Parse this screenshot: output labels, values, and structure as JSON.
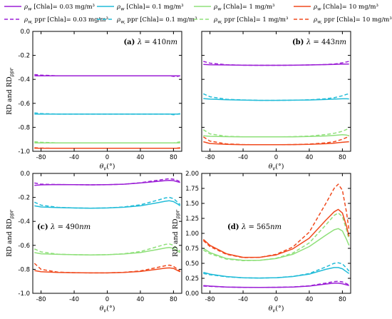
{
  "legend": {
    "entries": [
      {
        "label": "ρ_w [Chla]= 0.03 mg/m³",
        "color": "#9b1fd6",
        "dash": false
      },
      {
        "label": "ρ_w [Chla]= 0.1 mg/m³",
        "color": "#22bcd8",
        "dash": false
      },
      {
        "label": "ρ_w [Chla]= 1 mg/m³",
        "color": "#8fe07a",
        "dash": false
      },
      {
        "label": "ρ_w [Chla]= 10 mg/m³",
        "color": "#f04a1e",
        "dash": false
      },
      {
        "label": "ρ_w, ppr [Chla]= 0.03 mg/m³",
        "color": "#9b1fd6",
        "dash": true
      },
      {
        "label": "ρ_w, ppr [Chla]= 0.1 mg/m³",
        "color": "#22bcd8",
        "dash": true
      },
      {
        "label": "ρ_w, ppr [Chla]= 1 mg/m³",
        "color": "#8fe07a",
        "dash": true
      },
      {
        "label": "ρ_w, ppr [Chla]= 10 mg/m³",
        "color": "#f04a1e",
        "dash": true
      }
    ]
  },
  "chart_data": [
    {
      "type": "line",
      "title": "(a) λ = 410nm",
      "xlabel": "θv(°)",
      "ylabel": "RD and RDppr",
      "xlim": [
        -90,
        90
      ],
      "ylim": [
        -1.0,
        0.0
      ],
      "xticks": [
        -80,
        -40,
        0,
        40,
        80
      ],
      "yticks": [
        0.0,
        -0.2,
        -0.4,
        -0.6,
        -0.8,
        -1.0
      ],
      "ytick_labels": [
        "0.0",
        "-0.2",
        "-0.4",
        "-0.6",
        "-0.8",
        "-1.0"
      ],
      "x": [
        -88,
        -80,
        -60,
        -40,
        -20,
        0,
        20,
        40,
        60,
        70,
        75,
        80,
        85,
        88
      ],
      "series": [
        {
          "color": "#9b1fd6",
          "dash": false,
          "values": [
            -0.37,
            -0.37,
            -0.37,
            -0.37,
            -0.37,
            -0.37,
            -0.37,
            -0.37,
            -0.37,
            -0.37,
            -0.37,
            -0.37,
            -0.37,
            -0.37
          ]
        },
        {
          "color": "#9b1fd6",
          "dash": true,
          "values": [
            -0.36,
            -0.365,
            -0.37,
            -0.37,
            -0.37,
            -0.37,
            -0.37,
            -0.37,
            -0.37,
            -0.37,
            -0.37,
            -0.375,
            -0.375,
            -0.37
          ]
        },
        {
          "color": "#22bcd8",
          "dash": false,
          "values": [
            -0.69,
            -0.69,
            -0.69,
            -0.69,
            -0.69,
            -0.69,
            -0.69,
            -0.69,
            -0.69,
            -0.69,
            -0.69,
            -0.69,
            -0.69,
            -0.69
          ]
        },
        {
          "color": "#22bcd8",
          "dash": true,
          "values": [
            -0.68,
            -0.685,
            -0.69,
            -0.69,
            -0.69,
            -0.69,
            -0.69,
            -0.69,
            -0.69,
            -0.69,
            -0.69,
            -0.695,
            -0.69,
            -0.685
          ]
        },
        {
          "color": "#8fe07a",
          "dash": false,
          "values": [
            -0.93,
            -0.93,
            -0.93,
            -0.93,
            -0.93,
            -0.93,
            -0.93,
            -0.93,
            -0.93,
            -0.93,
            -0.93,
            -0.93,
            -0.93,
            -0.93
          ]
        },
        {
          "color": "#8fe07a",
          "dash": true,
          "values": [
            -0.92,
            -0.925,
            -0.93,
            -0.93,
            -0.93,
            -0.93,
            -0.93,
            -0.93,
            -0.93,
            -0.93,
            -0.93,
            -0.93,
            -0.925,
            -0.92
          ]
        },
        {
          "color": "#f04a1e",
          "dash": false,
          "values": [
            -0.975,
            -0.975,
            -0.975,
            -0.975,
            -0.975,
            -0.975,
            -0.975,
            -0.975,
            -0.975,
            -0.975,
            -0.975,
            -0.975,
            -0.975,
            -0.975
          ]
        },
        {
          "color": "#f04a1e",
          "dash": true,
          "values": [
            -0.97,
            -0.973,
            -0.975,
            -0.975,
            -0.975,
            -0.975,
            -0.975,
            -0.975,
            -0.975,
            -0.975,
            -0.975,
            -0.975,
            -0.973,
            -0.97
          ]
        }
      ]
    },
    {
      "type": "line",
      "title": "(b) λ = 443nm",
      "xlabel": "θv(°)",
      "ylabel": "",
      "xlim": [
        -90,
        90
      ],
      "ylim": [
        -1.0,
        0.0
      ],
      "xticks": [
        -80,
        -40,
        0,
        40,
        80
      ],
      "yticks": [
        0.0,
        -0.2,
        -0.4,
        -0.6,
        -0.8,
        -1.0
      ],
      "ytick_labels": [
        "",
        "",
        "",
        "",
        "",
        ""
      ],
      "x": [
        -88,
        -80,
        -60,
        -40,
        -20,
        0,
        20,
        40,
        60,
        70,
        75,
        80,
        85,
        88
      ],
      "series": [
        {
          "color": "#9b1fd6",
          "dash": false,
          "values": [
            -0.275,
            -0.278,
            -0.28,
            -0.282,
            -0.283,
            -0.283,
            -0.282,
            -0.28,
            -0.277,
            -0.275,
            -0.274,
            -0.273,
            -0.272,
            -0.272
          ]
        },
        {
          "color": "#9b1fd6",
          "dash": true,
          "values": [
            -0.25,
            -0.265,
            -0.278,
            -0.282,
            -0.283,
            -0.283,
            -0.282,
            -0.28,
            -0.276,
            -0.272,
            -0.268,
            -0.262,
            -0.255,
            -0.25
          ]
        },
        {
          "color": "#22bcd8",
          "dash": false,
          "values": [
            -0.56,
            -0.565,
            -0.57,
            -0.573,
            -0.575,
            -0.575,
            -0.574,
            -0.572,
            -0.568,
            -0.565,
            -0.563,
            -0.562,
            -0.562,
            -0.563
          ]
        },
        {
          "color": "#22bcd8",
          "dash": true,
          "values": [
            -0.52,
            -0.545,
            -0.566,
            -0.572,
            -0.575,
            -0.575,
            -0.574,
            -0.571,
            -0.562,
            -0.553,
            -0.545,
            -0.537,
            -0.525,
            -0.52
          ]
        },
        {
          "color": "#8fe07a",
          "dash": false,
          "values": [
            -0.87,
            -0.875,
            -0.878,
            -0.88,
            -0.88,
            -0.88,
            -0.879,
            -0.877,
            -0.872,
            -0.867,
            -0.864,
            -0.862,
            -0.865,
            -0.87
          ]
        },
        {
          "color": "#8fe07a",
          "dash": true,
          "values": [
            -0.82,
            -0.855,
            -0.875,
            -0.879,
            -0.88,
            -0.88,
            -0.878,
            -0.873,
            -0.86,
            -0.85,
            -0.842,
            -0.833,
            -0.818,
            -0.81
          ]
        },
        {
          "color": "#f04a1e",
          "dash": false,
          "values": [
            -0.92,
            -0.935,
            -0.942,
            -0.945,
            -0.945,
            -0.945,
            -0.944,
            -0.942,
            -0.937,
            -0.932,
            -0.928,
            -0.925,
            -0.922,
            -0.92
          ]
        },
        {
          "color": "#f04a1e",
          "dash": true,
          "values": [
            -0.88,
            -0.915,
            -0.938,
            -0.944,
            -0.945,
            -0.945,
            -0.944,
            -0.94,
            -0.93,
            -0.92,
            -0.91,
            -0.9,
            -0.885,
            -0.87
          ]
        }
      ]
    },
    {
      "type": "line",
      "title": "(c) λ = 490nm",
      "xlabel": "θv(°)",
      "ylabel": "RD and RDppr",
      "xlim": [
        -90,
        90
      ],
      "ylim": [
        -1.0,
        0.0
      ],
      "xticks": [
        -80,
        -40,
        0,
        40,
        80
      ],
      "yticks": [
        0.0,
        -0.2,
        -0.4,
        -0.6,
        -0.8,
        -1.0
      ],
      "ytick_labels": [
        "0.0",
        "-0.2",
        "-0.4",
        "-0.6",
        "-0.8",
        "-1.0"
      ],
      "x": [
        -88,
        -80,
        -60,
        -40,
        -20,
        0,
        20,
        40,
        60,
        70,
        75,
        80,
        85,
        88
      ],
      "series": [
        {
          "color": "#9b1fd6",
          "dash": false,
          "values": [
            -0.1,
            -0.095,
            -0.093,
            -0.094,
            -0.095,
            -0.094,
            -0.09,
            -0.08,
            -0.067,
            -0.06,
            -0.058,
            -0.06,
            -0.07,
            -0.075
          ]
        },
        {
          "color": "#9b1fd6",
          "dash": true,
          "values": [
            -0.08,
            -0.09,
            -0.093,
            -0.094,
            -0.095,
            -0.094,
            -0.09,
            -0.078,
            -0.058,
            -0.048,
            -0.044,
            -0.048,
            -0.06,
            -0.07
          ]
        },
        {
          "color": "#22bcd8",
          "dash": false,
          "values": [
            -0.27,
            -0.28,
            -0.285,
            -0.288,
            -0.29,
            -0.288,
            -0.282,
            -0.27,
            -0.245,
            -0.232,
            -0.228,
            -0.235,
            -0.255,
            -0.27
          ]
        },
        {
          "color": "#22bcd8",
          "dash": true,
          "values": [
            -0.24,
            -0.265,
            -0.283,
            -0.288,
            -0.29,
            -0.288,
            -0.28,
            -0.262,
            -0.225,
            -0.205,
            -0.2,
            -0.21,
            -0.24,
            -0.26
          ]
        },
        {
          "color": "#8fe07a",
          "dash": false,
          "values": [
            -0.66,
            -0.67,
            -0.675,
            -0.678,
            -0.68,
            -0.678,
            -0.672,
            -0.66,
            -0.635,
            -0.622,
            -0.618,
            -0.625,
            -0.648,
            -0.66
          ]
        },
        {
          "color": "#8fe07a",
          "dash": true,
          "values": [
            -0.63,
            -0.655,
            -0.673,
            -0.678,
            -0.68,
            -0.678,
            -0.67,
            -0.652,
            -0.612,
            -0.592,
            -0.588,
            -0.6,
            -0.63,
            -0.65
          ]
        },
        {
          "color": "#f04a1e",
          "dash": false,
          "values": [
            -0.81,
            -0.82,
            -0.826,
            -0.828,
            -0.83,
            -0.83,
            -0.826,
            -0.818,
            -0.8,
            -0.79,
            -0.788,
            -0.792,
            -0.81,
            -0.82
          ]
        },
        {
          "color": "#f04a1e",
          "dash": true,
          "values": [
            -0.75,
            -0.8,
            -0.823,
            -0.828,
            -0.83,
            -0.83,
            -0.825,
            -0.813,
            -0.785,
            -0.77,
            -0.765,
            -0.775,
            -0.8,
            -0.815
          ]
        }
      ]
    },
    {
      "type": "line",
      "title": "(d) λ = 565nm",
      "xlabel": "θv(°)",
      "ylabel": "RD and RDppr",
      "xlim": [
        -90,
        90
      ],
      "ylim": [
        0.0,
        2.0
      ],
      "xticks": [
        -80,
        -40,
        0,
        40,
        80
      ],
      "yticks": [
        0.0,
        0.25,
        0.5,
        0.75,
        1.0,
        1.25,
        1.5,
        1.75,
        2.0
      ],
      "ytick_labels": [
        "0.00",
        "0.25",
        "0.50",
        "0.75",
        "1.00",
        "1.25",
        "1.50",
        "1.75",
        "2.00"
      ],
      "x": [
        -88,
        -80,
        -60,
        -40,
        -20,
        0,
        20,
        40,
        60,
        70,
        75,
        80,
        85,
        88
      ],
      "series": [
        {
          "color": "#9b1fd6",
          "dash": false,
          "values": [
            0.13,
            0.12,
            0.105,
            0.1,
            0.098,
            0.1,
            0.105,
            0.12,
            0.155,
            0.17,
            0.17,
            0.16,
            0.14,
            0.13
          ]
        },
        {
          "color": "#9b1fd6",
          "dash": true,
          "values": [
            0.12,
            0.115,
            0.103,
            0.099,
            0.098,
            0.1,
            0.106,
            0.125,
            0.17,
            0.195,
            0.2,
            0.19,
            0.16,
            0.14
          ]
        },
        {
          "color": "#22bcd8",
          "dash": false,
          "values": [
            0.35,
            0.32,
            0.28,
            0.26,
            0.255,
            0.26,
            0.28,
            0.32,
            0.4,
            0.43,
            0.43,
            0.41,
            0.36,
            0.33
          ]
        },
        {
          "color": "#22bcd8",
          "dash": true,
          "values": [
            0.33,
            0.31,
            0.275,
            0.258,
            0.255,
            0.26,
            0.282,
            0.33,
            0.44,
            0.5,
            0.51,
            0.49,
            0.42,
            0.37
          ]
        },
        {
          "color": "#8fe07a",
          "dash": false,
          "values": [
            0.75,
            0.68,
            0.58,
            0.55,
            0.55,
            0.58,
            0.65,
            0.78,
            0.97,
            1.06,
            1.08,
            1.04,
            0.9,
            0.8
          ]
        },
        {
          "color": "#8fe07a",
          "dash": true,
          "values": [
            0.72,
            0.66,
            0.57,
            0.545,
            0.55,
            0.585,
            0.67,
            0.84,
            1.14,
            1.3,
            1.34,
            1.28,
            1.06,
            0.9
          ]
        },
        {
          "color": "#f04a1e",
          "dash": false,
          "values": [
            0.9,
            0.8,
            0.66,
            0.6,
            0.6,
            0.64,
            0.74,
            0.92,
            1.22,
            1.36,
            1.4,
            1.34,
            1.12,
            0.95
          ]
        },
        {
          "color": "#f04a1e",
          "dash": true,
          "values": [
            0.88,
            0.78,
            0.65,
            0.595,
            0.6,
            0.65,
            0.77,
            1.02,
            1.5,
            1.75,
            1.82,
            1.72,
            1.35,
            1.05
          ]
        }
      ]
    }
  ]
}
